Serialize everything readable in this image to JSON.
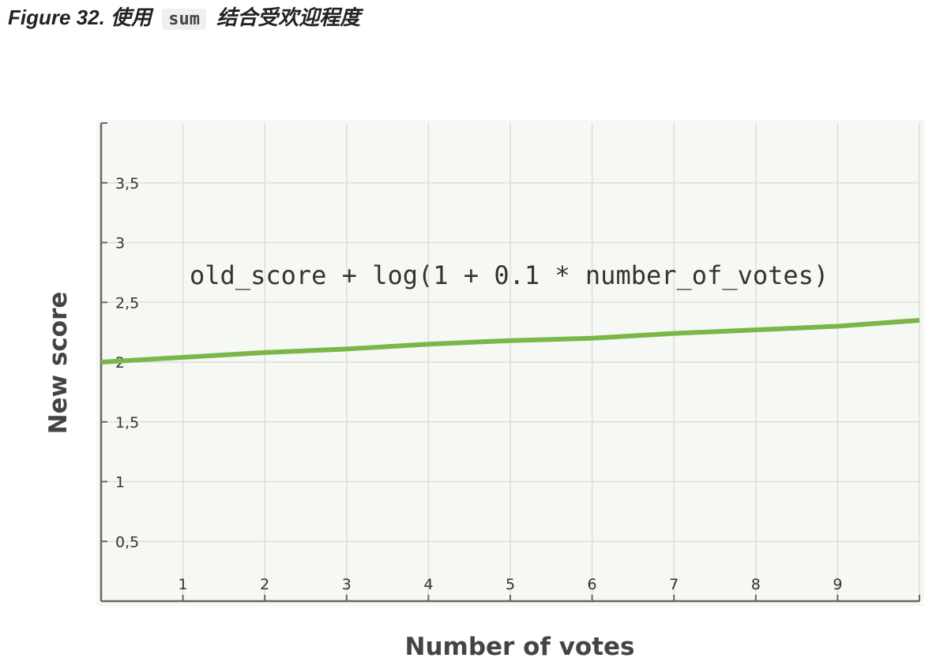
{
  "caption": {
    "prefix": "Figure 32. 使用",
    "code": "sum",
    "suffix": "结合受欢迎程度"
  },
  "colors": {
    "plot_background": "#f5f8f3",
    "grid": "#dddddd",
    "axis": "#666666",
    "series_line": "#7ab648"
  },
  "chart_data": {
    "type": "line",
    "title": "",
    "xlabel": "Number of votes",
    "ylabel": "New score",
    "annotation": "old_score + log(1 + 0.1 * number_of_votes)",
    "xlim": [
      0,
      10
    ],
    "ylim": [
      0,
      4
    ],
    "x_ticks": [
      1,
      2,
      3,
      4,
      5,
      6,
      7,
      8,
      9
    ],
    "x_tick_labels": [
      "1",
      "2",
      "3",
      "4",
      "5",
      "6",
      "7",
      "8",
      "9"
    ],
    "y_ticks": [
      0.5,
      1,
      1.5,
      2,
      2.5,
      3,
      3.5
    ],
    "y_tick_labels": [
      "0,5",
      "1",
      "1,5",
      "2",
      "2,5",
      "3",
      "3,5"
    ],
    "grid": true,
    "series": [
      {
        "x": [
          0,
          1,
          2,
          3,
          4,
          5,
          6,
          7,
          8,
          9,
          10
        ],
        "y": [
          2.0,
          2.04,
          2.08,
          2.11,
          2.15,
          2.18,
          2.2,
          2.24,
          2.27,
          2.3,
          2.35
        ]
      }
    ]
  }
}
